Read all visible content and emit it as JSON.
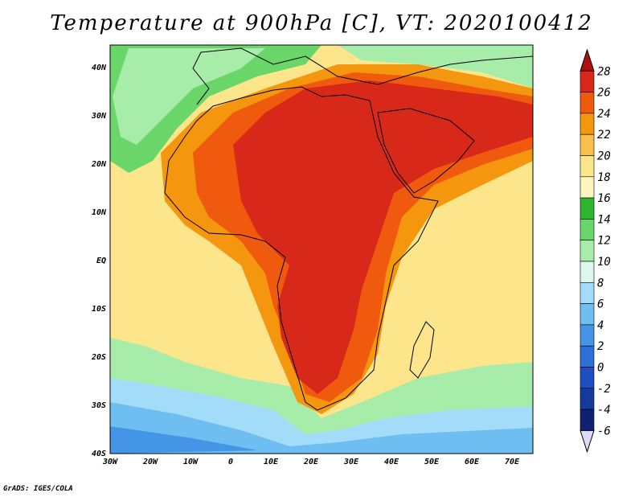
{
  "title": "Temperature at 900hPa [C], VT: 2020100412",
  "footer": "GrADS: IGES/COLA",
  "map": {
    "lon_ticks": [
      "30W",
      "20W",
      "10W",
      "0",
      "10E",
      "20E",
      "30E",
      "40E",
      "50E",
      "60E",
      "70E"
    ],
    "lat_ticks": [
      "40N",
      "30N",
      "20N",
      "10N",
      "EQ",
      "10S",
      "20S",
      "30S",
      "40S"
    ]
  },
  "colorbar": {
    "labels": [
      "28",
      "26",
      "24",
      "22",
      "20",
      "18",
      "16",
      "14",
      "12",
      "10",
      "8",
      "6",
      "4",
      "2",
      "0",
      "-2",
      "-4",
      "-6"
    ],
    "colors": [
      "#b0110e",
      "#d8281a",
      "#f05a0f",
      "#f5960f",
      "#f8c04a",
      "#fde58c",
      "#fdf6bc",
      "#2fb52f",
      "#6ad66a",
      "#a8ecaa",
      "#dcf8ea",
      "#a3dcf8",
      "#6fbef2",
      "#4595e6",
      "#2d6fd6",
      "#1d4fbf",
      "#153a9c",
      "#0f2173",
      "#dcdcf8"
    ]
  }
}
